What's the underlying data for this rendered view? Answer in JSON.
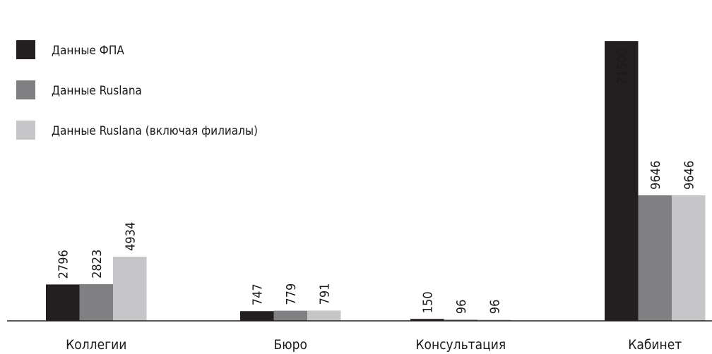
{
  "chart_data": {
    "type": "bar",
    "categories": [
      "Коллегии",
      "Бюро",
      "Консультация",
      "Кабинет"
    ],
    "series": [
      {
        "name": "Данные ФПА",
        "color": "#231f20",
        "values": [
          2796,
          747,
          150,
          21500
        ]
      },
      {
        "name": "Данные Ruslana",
        "color": "#808083",
        "values": [
          2823,
          779,
          96,
          9646
        ]
      },
      {
        "name": "Данные Ruslana (включая филиалы)",
        "color": "#c6c6c8",
        "values": [
          4934,
          791,
          96,
          9646
        ]
      }
    ],
    "data_labels": [
      [
        "2796",
        "2823",
        "4934"
      ],
      [
        "747",
        "779",
        "791"
      ],
      [
        "150",
        "96",
        "96"
      ],
      [
        "21500",
        "9646",
        "9646"
      ]
    ],
    "ylim": [
      0,
      24000
    ],
    "legend_position": "top-left",
    "grid": false
  }
}
